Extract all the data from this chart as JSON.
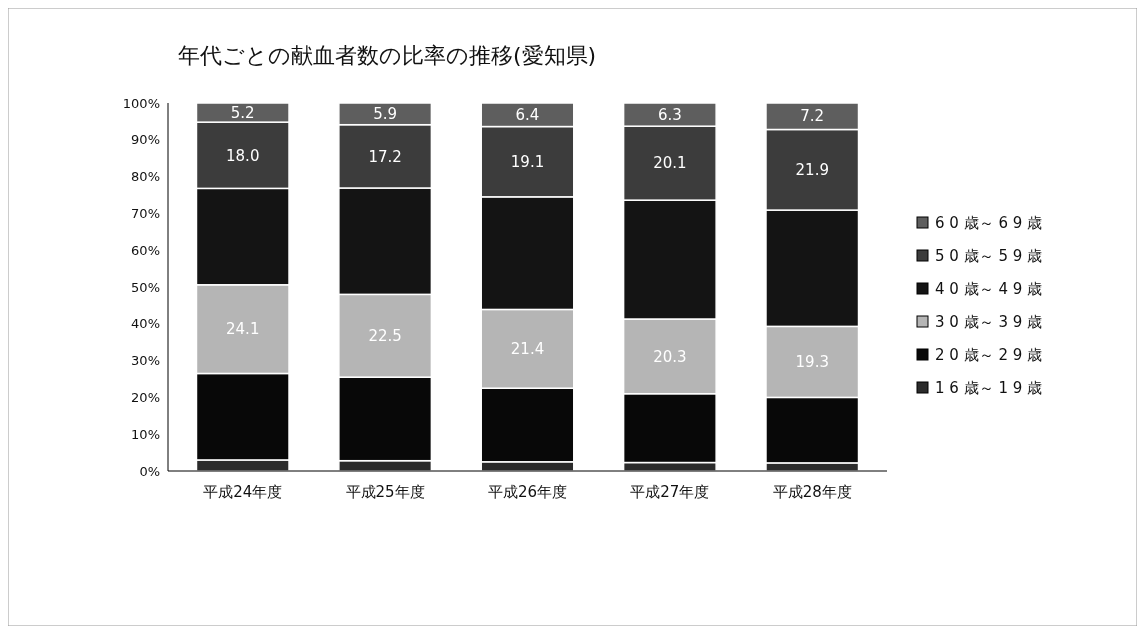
{
  "chart_data": {
    "type": "bar",
    "stacked": true,
    "title": "年代ごとの献血者数の比率の推移(愛知県)",
    "categories": [
      "平成24年度",
      "平成25年度",
      "平成26年度",
      "平成27年度",
      "平成28年度"
    ],
    "series": [
      {
        "name": "1 6 歳～ 1 9 歳",
        "color": "#2b2b2b",
        "values": [
          3.0,
          2.8,
          2.5,
          2.3,
          2.2
        ]
      },
      {
        "name": "2 0 歳～ 2 9 歳",
        "color": "#080808",
        "values": [
          23.5,
          22.7,
          20.0,
          18.7,
          17.8
        ]
      },
      {
        "name": "3 0 歳～ 3 9 歳",
        "color": "#b5b5b5",
        "values": [
          24.1,
          22.5,
          21.4,
          20.3,
          19.3
        ],
        "value_labels": [
          "24.1",
          "22.5",
          "21.4",
          "20.3",
          "19.3"
        ]
      },
      {
        "name": "4 0 歳～ 4 9 歳",
        "color": "#141414",
        "values": [
          26.2,
          28.9,
          30.6,
          32.3,
          31.6
        ]
      },
      {
        "name": "5 0 歳～ 5 9 歳",
        "color": "#3c3c3c",
        "values": [
          18.0,
          17.2,
          19.1,
          20.1,
          21.9
        ],
        "value_labels": [
          "18.0",
          "17.2",
          "19.1",
          "20.1",
          "21.9"
        ]
      },
      {
        "name": "6 0 歳～ 6 9 歳",
        "color": "#5e5e5e",
        "values": [
          5.2,
          5.9,
          6.4,
          6.3,
          7.2
        ],
        "value_labels": [
          "5.2",
          "5.9",
          "6.4",
          "6.3",
          "7.2"
        ]
      }
    ],
    "ylim": [
      0,
      100
    ],
    "yticks": [
      {
        "value": 0,
        "label": "0%"
      },
      {
        "value": 10,
        "label": "10%"
      },
      {
        "value": 20,
        "label": "20%"
      },
      {
        "value": 30,
        "label": "30%"
      },
      {
        "value": 40,
        "label": "40%"
      },
      {
        "value": 50,
        "label": "50%"
      },
      {
        "value": 60,
        "label": "60%"
      },
      {
        "value": 70,
        "label": "70%"
      },
      {
        "value": 80,
        "label": "80%"
      },
      {
        "value": 90,
        "label": "90%"
      },
      {
        "value": 100,
        "label": "100%"
      }
    ],
    "legend": "right"
  }
}
